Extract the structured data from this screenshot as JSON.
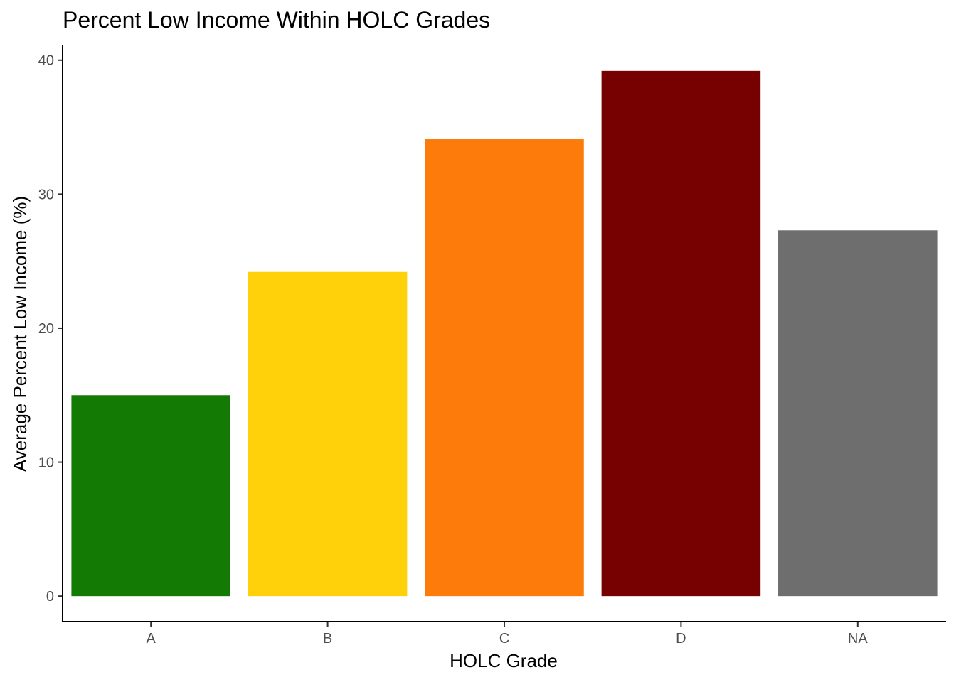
{
  "chart_data": {
    "type": "bar",
    "title": "Percent Low Income Within HOLC Grades",
    "xlabel": "HOLC Grade",
    "ylabel": "Average Percent Low Income (%)",
    "categories": [
      "A",
      "B",
      "C",
      "D",
      "NA"
    ],
    "values": [
      15.0,
      24.2,
      34.1,
      39.2,
      27.3
    ],
    "colors": [
      "#137b03",
      "#fed10b",
      "#fd7b0a",
      "#770000",
      "#6e6e6e"
    ],
    "ylim": [
      -1.9,
      41.1
    ],
    "yticks": [
      0,
      10,
      20,
      30,
      40
    ],
    "grid": false,
    "legend": "none"
  }
}
